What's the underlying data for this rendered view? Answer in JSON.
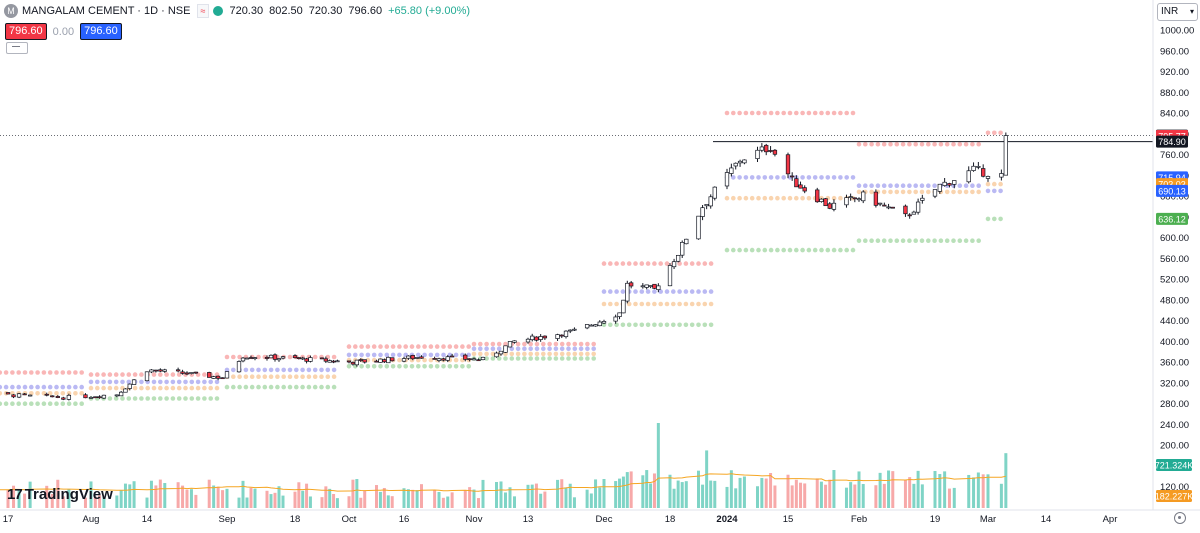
{
  "header": {
    "logo_letter": "M",
    "symbol": "MANGALAM CEMENT · 1D · NSE",
    "flag_text": "≈",
    "open": "720.30",
    "high": "802.50",
    "low": "720.30",
    "close": "796.60",
    "change": "+65.80 (+9.00%)"
  },
  "quote": {
    "bid": "796.60",
    "spread": "0.00",
    "ask": "796.60"
  },
  "currency": {
    "label": "INR"
  },
  "brand": {
    "mark": "17",
    "name": "TradingView"
  },
  "colors": {
    "up": "#22ab94",
    "down": "#f23645",
    "up_fill": "#ffffff",
    "vol_up": "#7fd4c6",
    "vol_down": "#f7a9a9",
    "vol_ma": "#f5a623",
    "pivot_r": "#f7a4a4",
    "pivot_p": "#a9a7f0",
    "pivot_s1": "#f8c99b",
    "pivot_s2": "#a8d8a8"
  },
  "chart_data": {
    "type": "candlestick",
    "ylim": [
      260,
      1040
    ],
    "price_ticks": [
      "1000.00",
      "960.00",
      "920.00",
      "880.00",
      "840.00",
      "800.00",
      "760.00",
      "720.00",
      "680.00",
      "640.00",
      "600.00",
      "560.00",
      "520.00",
      "480.00",
      "440.00",
      "400.00",
      "360.00",
      "320.00",
      "280.00",
      "240.00",
      "200.00",
      "160.00",
      "120.00"
    ],
    "time_ticks": [
      "17",
      "Aug",
      "14",
      "Sep",
      "18",
      "Oct",
      "16",
      "Nov",
      "13",
      "Dec",
      "18",
      "2024",
      "15",
      "Feb",
      "19",
      "Mar",
      "14",
      "Apr"
    ],
    "last_close": 796.6,
    "resistance_line": 784.9,
    "badges": [
      {
        "label": "796.60",
        "value": 796.6,
        "color": "#131722"
      },
      {
        "label": "795.77",
        "value": 795.77,
        "color": "#f23645"
      },
      {
        "label": "784.90",
        "value": 784.9,
        "color": "#131722"
      },
      {
        "label": "715.94",
        "value": 715.94,
        "color": "#2962ff"
      },
      {
        "label": "703.03",
        "value": 703.03,
        "color": "#f59b23"
      },
      {
        "label": "690.13",
        "value": 690.13,
        "color": "#2962ff"
      },
      {
        "label": "636.12",
        "value": 636.12,
        "color": "#4caf50"
      }
    ],
    "volume_badges": [
      {
        "label": "721.324K",
        "color": "#22ab94"
      },
      {
        "label": "182.227K",
        "color": "#f59b23"
      }
    ],
    "volume_max": 721324,
    "volume_ma_last": 182227,
    "close_path": [
      {
        "date": "2023-07-10",
        "close": 300
      },
      {
        "date": "2023-07-27",
        "close": 292
      },
      {
        "date": "2023-08-07",
        "close": 298
      },
      {
        "date": "2023-08-14",
        "close": 345
      },
      {
        "date": "2023-08-23",
        "close": 338
      },
      {
        "date": "2023-08-31",
        "close": 330
      },
      {
        "date": "2023-09-05",
        "close": 372
      },
      {
        "date": "2023-09-22",
        "close": 365
      },
      {
        "date": "2023-10-03",
        "close": 360
      },
      {
        "date": "2023-10-20",
        "close": 370
      },
      {
        "date": "2023-11-03",
        "close": 365
      },
      {
        "date": "2023-11-10",
        "close": 400
      },
      {
        "date": "2023-11-24",
        "close": 420
      },
      {
        "date": "2023-12-05",
        "close": 455
      },
      {
        "date": "2023-12-07",
        "close": 510
      },
      {
        "date": "2023-12-14",
        "close": 500
      },
      {
        "date": "2023-12-20",
        "close": 570
      },
      {
        "date": "2023-12-26",
        "close": 660
      },
      {
        "date": "2024-01-04",
        "close": 750
      },
      {
        "date": "2024-01-11",
        "close": 775
      },
      {
        "date": "2024-01-16",
        "close": 710
      },
      {
        "date": "2024-01-25",
        "close": 660
      },
      {
        "date": "2024-02-02",
        "close": 680
      },
      {
        "date": "2024-02-12",
        "close": 640
      },
      {
        "date": "2024-02-20",
        "close": 700
      },
      {
        "date": "2024-02-27",
        "close": 730
      },
      {
        "date": "2024-03-04",
        "close": 720
      },
      {
        "date": "2024-03-05",
        "close": 796.6
      }
    ],
    "pivot_periods": [
      {
        "start": "2023-07-03",
        "end": "2023-07-31",
        "R": 340,
        "P": 312,
        "S1": 300,
        "S2": 280
      },
      {
        "start": "2023-08-01",
        "end": "2023-08-31",
        "R": 336,
        "P": 322,
        "S1": 310,
        "S2": 290
      },
      {
        "start": "2023-09-01",
        "end": "2023-09-29",
        "R": 370,
        "P": 345,
        "S1": 332,
        "S2": 312
      },
      {
        "start": "2023-10-02",
        "end": "2023-10-31",
        "R": 390,
        "P": 374,
        "S1": 364,
        "S2": 352
      },
      {
        "start": "2023-11-01",
        "end": "2023-11-30",
        "R": 395,
        "P": 386,
        "S1": 376,
        "S2": 367
      },
      {
        "start": "2023-12-01",
        "end": "2023-12-29",
        "R": 550,
        "P": 496,
        "S1": 472,
        "S2": 432
      },
      {
        "start": "2024-01-01",
        "end": "2024-01-31",
        "R": 840,
        "P": 716,
        "S1": 676,
        "S2": 576
      },
      {
        "start": "2024-02-01",
        "end": "2024-02-29",
        "R": 780,
        "P": 700,
        "S1": 688,
        "S2": 594
      },
      {
        "start": "2024-03-01",
        "end": "2024-03-05",
        "R": 802,
        "P": 690,
        "S1": 703,
        "S2": 636
      }
    ]
  }
}
